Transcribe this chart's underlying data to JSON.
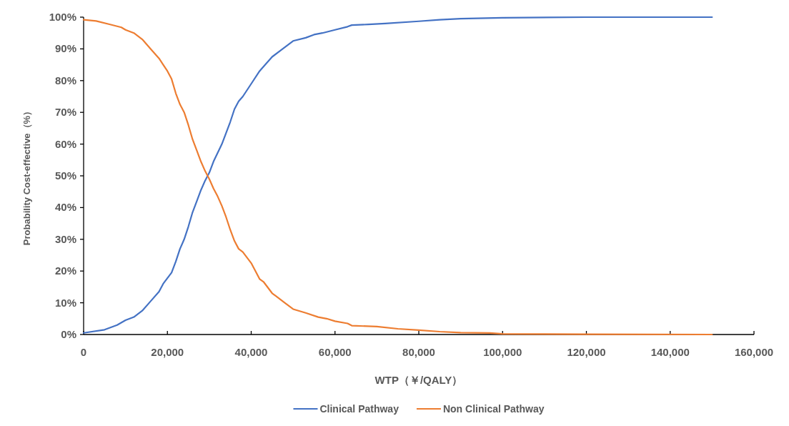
{
  "chart_data": {
    "type": "line",
    "xlabel": "WTP（￥/QALY）",
    "ylabel": "Probability Cost-effective（%）",
    "xlim": [
      0,
      160000
    ],
    "xticks": [
      {
        "value": 0,
        "label": "0"
      },
      {
        "value": 20000,
        "label": "20,000"
      },
      {
        "value": 40000,
        "label": "40,000"
      },
      {
        "value": 60000,
        "label": "60,000"
      },
      {
        "value": 80000,
        "label": "80,000"
      },
      {
        "value": 100000,
        "label": "100,000"
      },
      {
        "value": 120000,
        "label": "120,000"
      },
      {
        "value": 140000,
        "label": "140,000"
      },
      {
        "value": 160000,
        "label": "160,000"
      }
    ],
    "ylim": [
      0,
      100
    ],
    "yticks": [
      {
        "value": 0,
        "label": "0%"
      },
      {
        "value": 10,
        "label": "10%"
      },
      {
        "value": 20,
        "label": "20%"
      },
      {
        "value": 30,
        "label": "30%"
      },
      {
        "value": 40,
        "label": "40%"
      },
      {
        "value": 50,
        "label": "50%"
      },
      {
        "value": 60,
        "label": "60%"
      },
      {
        "value": 70,
        "label": "70%"
      },
      {
        "value": 80,
        "label": "80%"
      },
      {
        "value": 90,
        "label": "90%"
      },
      {
        "value": 100,
        "label": "100%"
      }
    ],
    "grid": false,
    "legend": "bottom",
    "line_style": "solid",
    "series": [
      {
        "name": "Clinical Pathway",
        "color": "#4472c4",
        "x": [
          0,
          5000,
          8000,
          10000,
          12000,
          14000,
          16000,
          18000,
          19000,
          21000,
          22000,
          23000,
          24000,
          25000,
          26000,
          27000,
          28000,
          29000,
          30000,
          31000,
          33000,
          35000,
          36000,
          37000,
          38000,
          40000,
          42000,
          43000,
          45000,
          47000,
          50000,
          53000,
          55000,
          57000,
          60000,
          63000,
          64000,
          68000,
          72000,
          80000,
          85000,
          90000,
          100000,
          120000,
          150000
        ],
        "values": [
          0.5,
          1.5,
          3,
          4.5,
          5.5,
          7.5,
          10.5,
          13.5,
          16,
          19.5,
          23,
          27,
          30,
          34,
          38.5,
          42,
          45.5,
          48.5,
          51,
          54.5,
          60,
          67,
          71,
          73.5,
          75,
          79,
          83,
          84.5,
          87.5,
          89.5,
          92.5,
          93.5,
          94.5,
          95,
          96,
          97,
          97.5,
          97.7,
          98,
          98.7,
          99.2,
          99.5,
          99.8,
          100,
          100
        ]
      },
      {
        "name": "Non Clinical Pathway",
        "color": "#ed7d31",
        "x": [
          0,
          3000,
          6000,
          9000,
          10000,
          12000,
          14000,
          16000,
          18000,
          19000,
          20000,
          21000,
          22000,
          23000,
          24000,
          25000,
          26000,
          27000,
          28000,
          29000,
          30000,
          31000,
          32000,
          33000,
          34000,
          35000,
          36000,
          37000,
          38000,
          40000,
          42000,
          43000,
          45000,
          46000,
          48000,
          50000,
          53000,
          56000,
          58000,
          60000,
          63000,
          64000,
          70000,
          75000,
          80000,
          85000,
          90000,
          97000,
          100000,
          120000,
          150000
        ],
        "values": [
          99.2,
          98.8,
          97.8,
          96.8,
          96,
          95,
          93,
          90,
          87,
          85,
          83,
          80.5,
          76,
          72.5,
          70,
          66,
          61.5,
          58,
          54.5,
          51.5,
          49,
          46,
          43.5,
          40.5,
          37,
          33,
          29.5,
          27,
          26,
          22.5,
          17.5,
          16.5,
          13,
          12,
          10,
          8,
          6.8,
          5.5,
          5,
          4.2,
          3.5,
          2.8,
          2.5,
          1.8,
          1.4,
          0.9,
          0.6,
          0.5,
          0.2,
          0.1,
          0
        ]
      }
    ]
  }
}
